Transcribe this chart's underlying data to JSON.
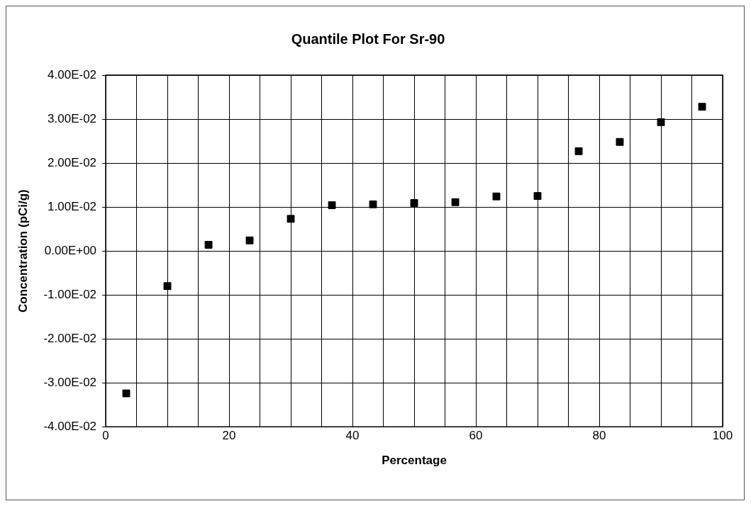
{
  "chart_data": {
    "type": "scatter",
    "title": "Quantile Plot For Sr-90",
    "xlabel": "Percentage",
    "ylabel": "Concentration (pCi/g)",
    "x": [
      3.33,
      10,
      16.67,
      23.33,
      30,
      36.67,
      43.33,
      50,
      56.67,
      63.33,
      70,
      76.67,
      83.33,
      90,
      96.67
    ],
    "values": [
      -0.0324,
      -0.008,
      0.0014,
      0.0024,
      0.0073,
      0.0104,
      0.0106,
      0.0109,
      0.0111,
      0.0124,
      0.0125,
      0.0227,
      0.0248,
      0.0293,
      0.0328
    ],
    "color": "#000000",
    "marker": "square",
    "xlim": [
      0,
      100
    ],
    "xticks": [
      0,
      {
        "value": 5,
        "label": null
      },
      {
        "value": 10,
        "label": null
      },
      {
        "value": 15,
        "label": null
      },
      20,
      {
        "value": 25,
        "label": null
      },
      {
        "value": 30,
        "label": null
      },
      {
        "value": 35,
        "label": null
      },
      40,
      {
        "value": 45,
        "label": null
      },
      {
        "value": 50,
        "label": null
      },
      {
        "value": 55,
        "label": null
      },
      60,
      {
        "value": 65,
        "label": null
      },
      {
        "value": 70,
        "label": null
      },
      {
        "value": 75,
        "label": null
      },
      80,
      {
        "value": 85,
        "label": null
      },
      {
        "value": 90,
        "label": null
      },
      {
        "value": 95,
        "label": null
      },
      100
    ],
    "ylim": [
      -0.04,
      0.04
    ],
    "yticks": [
      {
        "value": -0.04,
        "label": "-4.00E-02"
      },
      {
        "value": -0.03,
        "label": "-3.00E-02"
      },
      {
        "value": -0.02,
        "label": "-2.00E-02"
      },
      {
        "value": -0.01,
        "label": "-1.00E-02"
      },
      {
        "value": 0,
        "label": "0.00E+00"
      },
      {
        "value": 0.01,
        "label": "1.00E-02"
      },
      {
        "value": 0.02,
        "label": "2.00E-02"
      },
      {
        "value": 0.03,
        "label": "3.00E-02"
      },
      {
        "value": 0.04,
        "label": "4.00E-02"
      }
    ],
    "grid": true,
    "legend": false
  }
}
